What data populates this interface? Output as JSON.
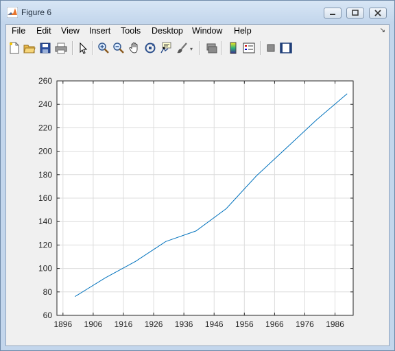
{
  "window": {
    "title": "Figure 6",
    "app_icon": "matlab-logo-icon",
    "controls": [
      {
        "name": "minimize-button",
        "icon": "minimize-icon"
      },
      {
        "name": "maximize-button",
        "icon": "maximize-icon"
      },
      {
        "name": "close-button",
        "icon": "close-icon"
      }
    ]
  },
  "menubar": {
    "items": [
      "File",
      "Edit",
      "View",
      "Insert",
      "Tools",
      "Desktop",
      "Window",
      "Help"
    ],
    "dock_icon": "dock-arrow-icon"
  },
  "toolbar": {
    "buttons": [
      "new-figure-icon",
      "open-file-icon",
      "save-icon",
      "print-icon",
      "edit-plot-arrow-icon",
      "zoom-in-icon",
      "zoom-out-icon",
      "pan-hand-icon",
      "rotate-3d-icon",
      "data-cursor-icon",
      "brush-icon",
      "link-plot-icon",
      "insert-colorbar-icon",
      "insert-legend-icon",
      "hide-plot-tools-icon",
      "show-plot-tools-icon"
    ]
  },
  "chart_data": {
    "type": "line",
    "title": "",
    "xlabel": "",
    "ylabel": "",
    "xlim": [
      1894,
      1992
    ],
    "ylim": [
      60,
      260
    ],
    "xticks": [
      1896,
      1906,
      1916,
      1926,
      1936,
      1946,
      1956,
      1966,
      1976,
      1986
    ],
    "yticks": [
      60,
      80,
      100,
      120,
      140,
      160,
      180,
      200,
      220,
      240,
      260
    ],
    "grid": true,
    "line_color": "#0072bd",
    "series": [
      {
        "x": [
          1900,
          1910,
          1920,
          1930,
          1940,
          1950,
          1960,
          1970,
          1980,
          1990
        ],
        "values": [
          76,
          92,
          106,
          123,
          132,
          151,
          179,
          203,
          227,
          249
        ]
      }
    ]
  }
}
